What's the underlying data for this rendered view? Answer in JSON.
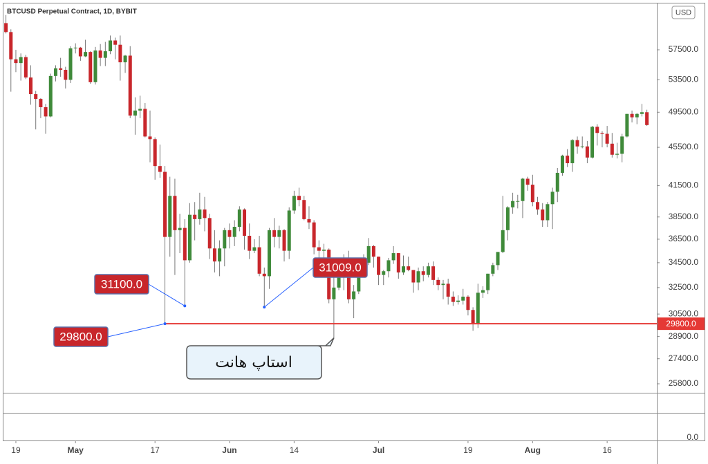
{
  "chart_data": {
    "type": "candlestick",
    "title": "BTCUSD Perpetual Contract, 1D, BYBIT",
    "currency": "USD",
    "up_color": "#3f8a3a",
    "down_color": "#c8262b",
    "log_scale": true,
    "xlim": [
      -0.5,
      131
    ],
    "ylim": [
      25250,
      64260
    ],
    "xticks": [
      {
        "value": 2,
        "label": "19"
      },
      {
        "value": 14,
        "label": "May"
      },
      {
        "value": 30,
        "label": "17"
      },
      {
        "value": 45,
        "label": "Jun"
      },
      {
        "value": 58,
        "label": "14"
      },
      {
        "value": 75,
        "label": "Jul"
      },
      {
        "value": 93,
        "label": "19"
      },
      {
        "value": 106,
        "label": "Aug"
      },
      {
        "value": 121,
        "label": "16"
      }
    ],
    "yticks": [
      {
        "value": 57500,
        "label": "57500.0"
      },
      {
        "value": 53500,
        "label": "53500.0"
      },
      {
        "value": 49500,
        "label": "49500.0"
      },
      {
        "value": 45500,
        "label": "45500.0"
      },
      {
        "value": 41500,
        "label": "41500.0"
      },
      {
        "value": 38500,
        "label": "38500.0"
      },
      {
        "value": 36500,
        "label": "36500.0"
      },
      {
        "value": 34500,
        "label": "34500.0"
      },
      {
        "value": 32500,
        "label": "32500.0"
      },
      {
        "value": 30500,
        "label": "30500.0"
      },
      {
        "value": 28900,
        "label": "28900.0"
      },
      {
        "value": 27400,
        "label": "27400.0"
      },
      {
        "value": 25800,
        "label": "25800.0"
      }
    ],
    "price_line": {
      "value": 29800,
      "label": "29800.0",
      "color": "#e53935"
    },
    "annotations": [
      {
        "x": 36,
        "value": 31100,
        "label": "31100.0"
      },
      {
        "x": 32,
        "value": 29800,
        "label": "29800.0"
      },
      {
        "x": 52,
        "value": 31009,
        "label": "31009.0"
      }
    ],
    "callout": {
      "x": 66,
      "value": 28800,
      "text": "استاپ هانت"
    },
    "lower_pane_label": "0.0",
    "candles": [
      [
        61300,
        62500,
        59800,
        60000
      ],
      [
        60000,
        60400,
        52000,
        56200
      ],
      [
        56200,
        57500,
        54500,
        55700
      ],
      [
        55700,
        57000,
        53400,
        56500
      ],
      [
        56500,
        56800,
        53600,
        53800
      ],
      [
        53800,
        55400,
        50400,
        51700
      ],
      [
        51700,
        52100,
        47500,
        51100
      ],
      [
        51100,
        51200,
        48800,
        50100
      ],
      [
        50100,
        50500,
        47000,
        49000
      ],
      [
        49000,
        54300,
        48900,
        54000
      ],
      [
        54000,
        55400,
        53300,
        55000
      ],
      [
        55000,
        56400,
        53900,
        54800
      ],
      [
        54800,
        55200,
        52400,
        53500
      ],
      [
        53500,
        58000,
        53100,
        57700
      ],
      [
        57700,
        58400,
        57000,
        57800
      ],
      [
        57800,
        57900,
        56000,
        56600
      ],
      [
        56600,
        58900,
        56500,
        57200
      ],
      [
        57200,
        57300,
        53000,
        53200
      ],
      [
        53200,
        57900,
        52900,
        57400
      ],
      [
        57400,
        58300,
        55300,
        56400
      ],
      [
        56400,
        58600,
        55300,
        57300
      ],
      [
        57300,
        59500,
        56900,
        58800
      ],
      [
        58800,
        59200,
        56200,
        58200
      ],
      [
        58200,
        59500,
        53400,
        55800
      ],
      [
        55800,
        56800,
        54400,
        56700
      ],
      [
        56700,
        58000,
        48800,
        49100
      ],
      [
        49100,
        51300,
        46900,
        49700
      ],
      [
        49700,
        51500,
        48800,
        49900
      ],
      [
        49900,
        50600,
        46600,
        46700
      ],
      [
        46700,
        49700,
        43900,
        46400
      ],
      [
        46400,
        46600,
        42100,
        43500
      ],
      [
        43500,
        45800,
        42300,
        42900
      ],
      [
        42900,
        43500,
        29800,
        36700
      ],
      [
        36700,
        42400,
        35000,
        40500
      ],
      [
        40500,
        42200,
        33500,
        37300
      ],
      [
        37300,
        38800,
        35300,
        37500
      ],
      [
        37500,
        38300,
        31100,
        34700
      ],
      [
        34700,
        39800,
        34500,
        38700
      ],
      [
        38700,
        39900,
        36400,
        38300
      ],
      [
        38300,
        40800,
        37800,
        39200
      ],
      [
        39200,
        40400,
        37200,
        38400
      ],
      [
        38400,
        38800,
        34800,
        35700
      ],
      [
        35700,
        37300,
        33700,
        34600
      ],
      [
        34600,
        36400,
        33400,
        35700
      ],
      [
        35700,
        37500,
        34200,
        37300
      ],
      [
        37300,
        37900,
        35700,
        36700
      ],
      [
        36700,
        38200,
        35900,
        37600
      ],
      [
        37600,
        39500,
        37200,
        39200
      ],
      [
        39200,
        39300,
        35600,
        36800
      ],
      [
        36800,
        37900,
        34800,
        35500
      ],
      [
        35500,
        36500,
        35300,
        35800
      ],
      [
        35800,
        36800,
        33400,
        33600
      ],
      [
        33600,
        34100,
        31009,
        33400
      ],
      [
        33400,
        37500,
        32400,
        37300
      ],
      [
        37300,
        38400,
        35800,
        36700
      ],
      [
        36700,
        37700,
        35700,
        37300
      ],
      [
        37300,
        37400,
        34600,
        35500
      ],
      [
        35500,
        39400,
        34800,
        39100
      ],
      [
        39100,
        41000,
        38800,
        40500
      ],
      [
        40500,
        41300,
        39500,
        40100
      ],
      [
        40100,
        40500,
        38200,
        38300
      ],
      [
        38300,
        39500,
        37400,
        38000
      ],
      [
        38000,
        38200,
        35200,
        35800
      ],
      [
        35800,
        36400,
        34900,
        35500
      ],
      [
        35500,
        36100,
        33400,
        35600
      ],
      [
        35600,
        35700,
        31300,
        31600
      ],
      [
        31600,
        33300,
        28800,
        32500
      ],
      [
        32500,
        34800,
        32300,
        33700
      ],
      [
        33700,
        35200,
        32300,
        34600
      ],
      [
        34600,
        35500,
        31300,
        31600
      ],
      [
        31600,
        32700,
        30200,
        32200
      ],
      [
        32200,
        34700,
        32000,
        34700
      ],
      [
        34700,
        35200,
        33900,
        34500
      ],
      [
        34500,
        36600,
        34300,
        35900
      ],
      [
        35900,
        36000,
        34100,
        35000
      ],
      [
        35000,
        35000,
        32700,
        33500
      ],
      [
        33500,
        33900,
        32700,
        33800
      ],
      [
        33800,
        34900,
        33300,
        34700
      ],
      [
        34700,
        35900,
        34400,
        35300
      ],
      [
        35300,
        35300,
        33200,
        33700
      ],
      [
        33700,
        35100,
        33500,
        34200
      ],
      [
        34200,
        35000,
        33800,
        33900
      ],
      [
        33900,
        33900,
        32100,
        32900
      ],
      [
        32900,
        34100,
        32300,
        33800
      ],
      [
        33800,
        34200,
        33000,
        33500
      ],
      [
        33500,
        34500,
        33300,
        34200
      ],
      [
        34200,
        34600,
        32700,
        33100
      ],
      [
        33100,
        33300,
        32300,
        32700
      ],
      [
        32700,
        33100,
        31600,
        32800
      ],
      [
        32800,
        33200,
        31200,
        31800
      ],
      [
        31800,
        32200,
        31100,
        31400
      ],
      [
        31400,
        31900,
        31200,
        31500
      ],
      [
        31500,
        32400,
        31200,
        31800
      ],
      [
        31800,
        31900,
        30400,
        30800
      ],
      [
        30800,
        31000,
        29300,
        29800
      ],
      [
        29800,
        32800,
        29500,
        32100
      ],
      [
        32100,
        32600,
        31700,
        32300
      ],
      [
        32300,
        33600,
        32000,
        33600
      ],
      [
        33600,
        34500,
        33400,
        34300
      ],
      [
        34300,
        35400,
        33900,
        35400
      ],
      [
        35400,
        40500,
        35300,
        37300
      ],
      [
        37300,
        39500,
        36400,
        39400
      ],
      [
        39400,
        40800,
        38800,
        40000
      ],
      [
        40000,
        40600,
        39300,
        40000
      ],
      [
        40000,
        42300,
        38400,
        42200
      ],
      [
        42200,
        42400,
        41000,
        41600
      ],
      [
        41600,
        42600,
        39500,
        39900
      ],
      [
        39900,
        40400,
        38700,
        39200
      ],
      [
        39200,
        39800,
        37600,
        38200
      ],
      [
        38200,
        39900,
        37600,
        39700
      ],
      [
        39700,
        41300,
        37400,
        40900
      ],
      [
        40900,
        43300,
        39900,
        42800
      ],
      [
        42800,
        44700,
        42500,
        44600
      ],
      [
        44600,
        45300,
        43400,
        43800
      ],
      [
        43800,
        46400,
        42900,
        46300
      ],
      [
        46300,
        46700,
        44800,
        45600
      ],
      [
        45600,
        46700,
        45400,
        45600
      ],
      [
        45600,
        46200,
        43800,
        44400
      ],
      [
        44400,
        47900,
        44300,
        47800
      ],
      [
        47800,
        48100,
        45700,
        47100
      ],
      [
        47100,
        47300,
        45500,
        47000
      ],
      [
        47000,
        47900,
        45500,
        45900
      ],
      [
        45900,
        47100,
        44400,
        44700
      ],
      [
        44700,
        46000,
        44300,
        44800
      ],
      [
        44800,
        47000,
        43900,
        46700
      ],
      [
        46700,
        49300,
        46600,
        49300
      ],
      [
        49300,
        49700,
        48300,
        48900
      ],
      [
        48900,
        49400,
        48100,
        49300
      ],
      [
        49300,
        50500,
        49000,
        49500
      ],
      [
        49500,
        49800,
        47900,
        48000
      ]
    ]
  }
}
